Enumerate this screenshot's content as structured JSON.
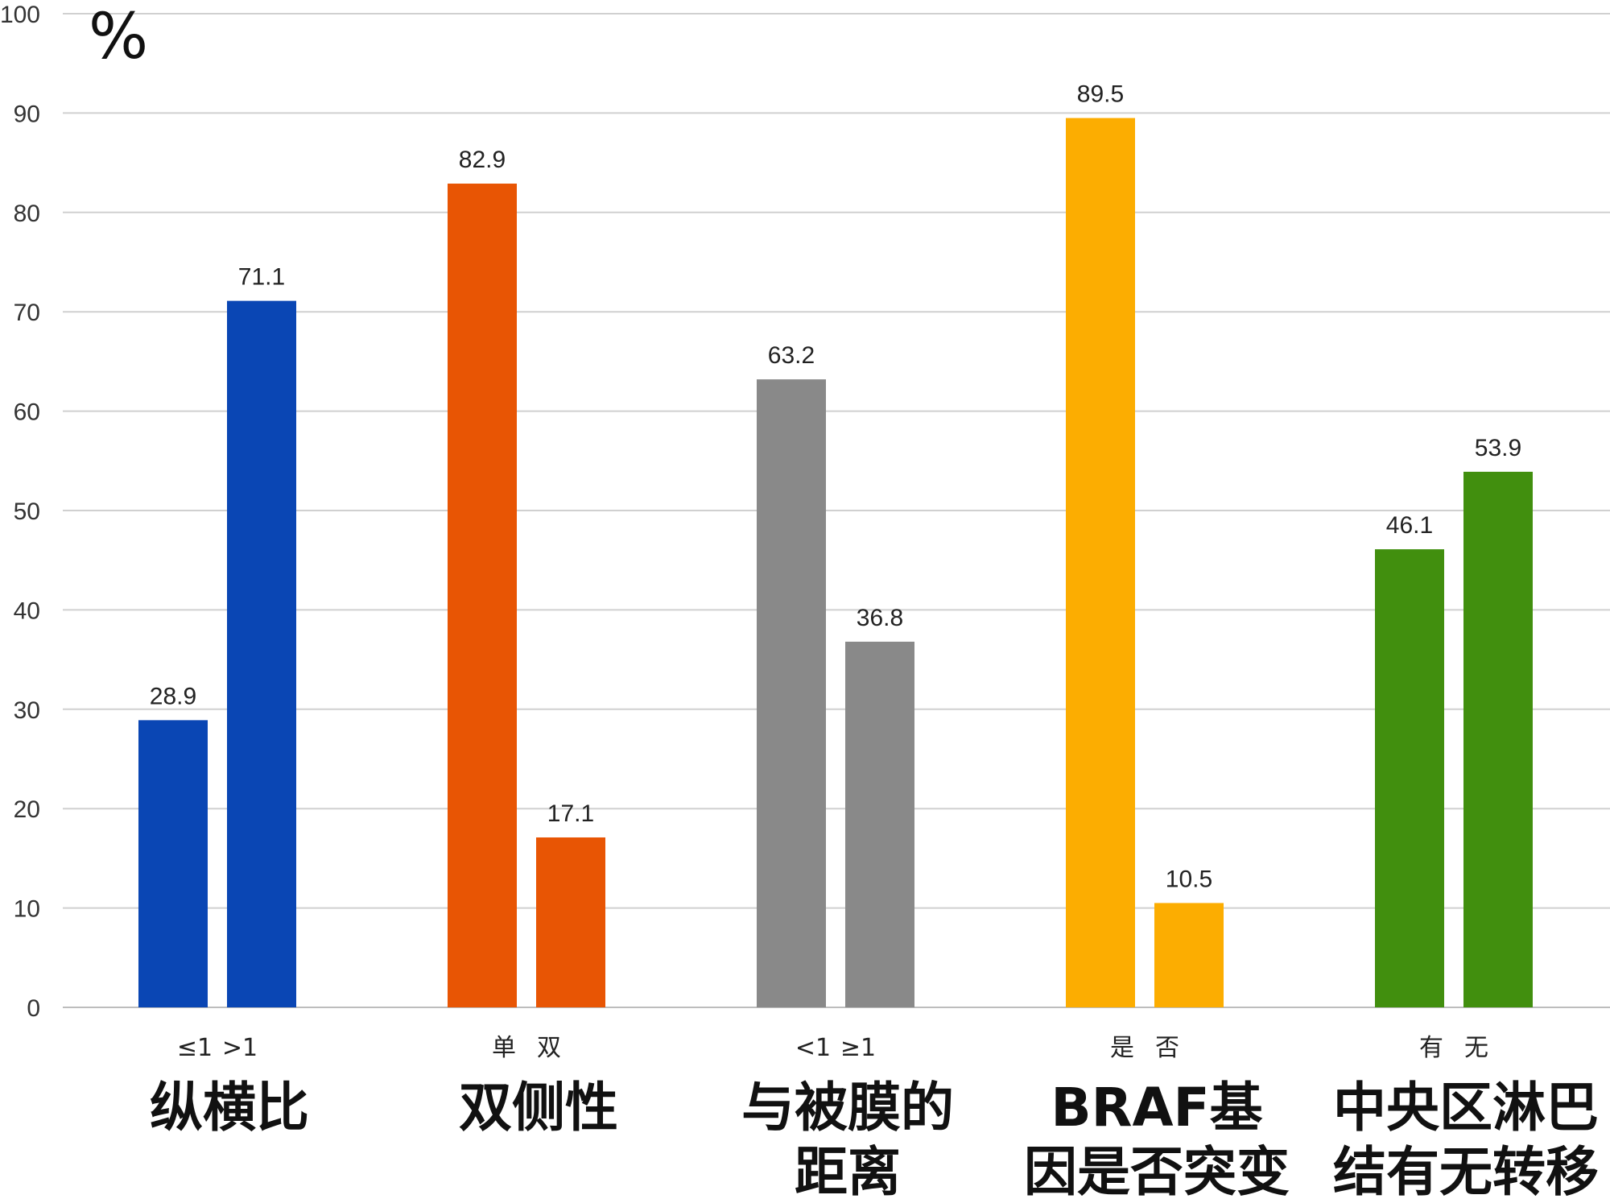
{
  "chart_data": {
    "type": "bar",
    "unit": "%",
    "ylim": [
      0,
      100
    ],
    "yticks": [
      0,
      10,
      20,
      30,
      40,
      50,
      60,
      70,
      80,
      90,
      100
    ],
    "grid": true,
    "categories": [
      {
        "name": "纵横比",
        "name_lines": [
          "纵横比"
        ],
        "subcategories": [
          "≤1",
          ">1"
        ],
        "values": [
          28.9,
          71.1
        ],
        "color": "#0a46b4"
      },
      {
        "name": "双侧性",
        "name_lines": [
          "双侧性"
        ],
        "subcategories": [
          "单",
          "双"
        ],
        "values": [
          82.9,
          17.1
        ],
        "color": "#e85504"
      },
      {
        "name": "与被膜的距离",
        "name_lines": [
          "与被膜的",
          "距离"
        ],
        "subcategories": [
          "<1",
          "≥1"
        ],
        "values": [
          63.2,
          36.8
        ],
        "color": "#898989"
      },
      {
        "name": "BRAF基因是否突变",
        "name_lines": [
          "BRAF基",
          "因是否突变"
        ],
        "subcategories": [
          "是",
          "否"
        ],
        "values": [
          89.5,
          10.5
        ],
        "color": "#fcad01"
      },
      {
        "name": "中央区淋巴结有无转移",
        "name_lines": [
          "中央区淋巴",
          "结有无转移"
        ],
        "subcategories": [
          "有",
          "无"
        ],
        "values": [
          46.1,
          53.9
        ],
        "color": "#418f0e"
      }
    ]
  }
}
